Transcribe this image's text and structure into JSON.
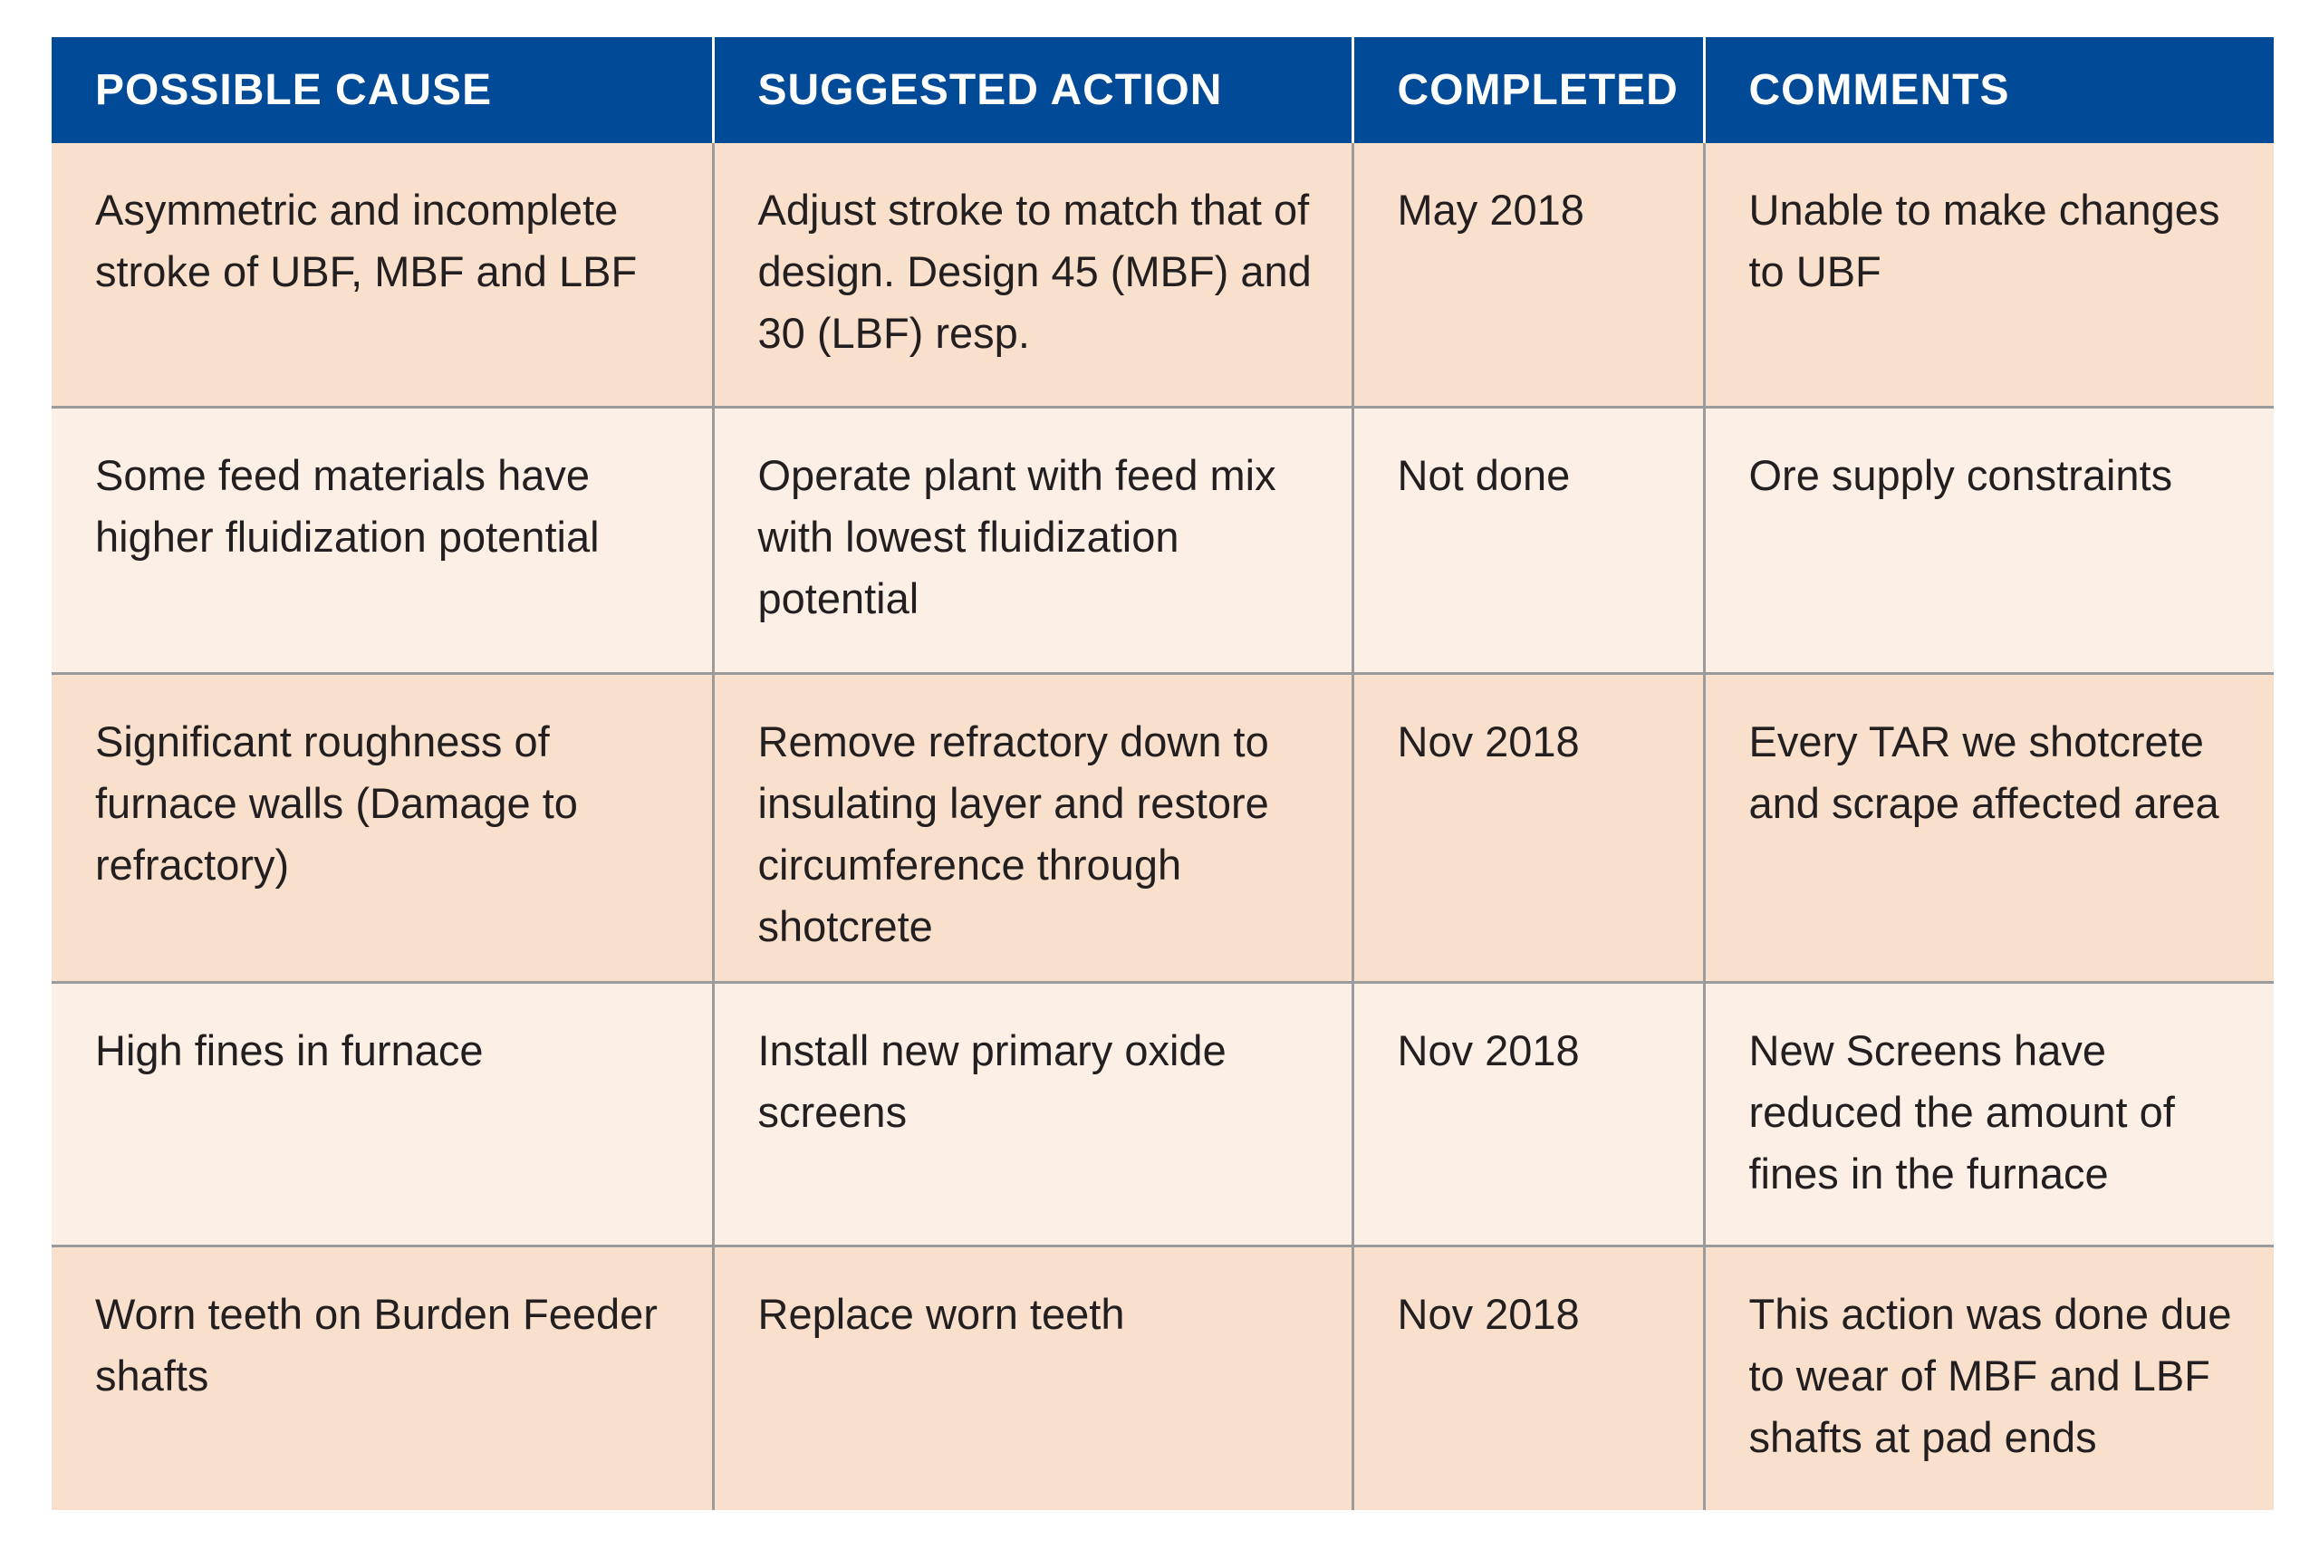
{
  "table": {
    "headers": [
      "POSSIBLE CAUSE",
      "SUGGESTED ACTION",
      "COMPLETED",
      "COMMENTS"
    ],
    "rows": [
      [
        "Asymmetric and incomplete stroke of UBF, MBF and LBF",
        "Adjust stroke to match that of design. Design 45 (MBF) and 30 (LBF) resp.",
        "May 2018",
        "Unable to make changes to UBF"
      ],
      [
        "Some feed materials have higher fluidization potential",
        "Operate plant with feed mix with lowest fluidization potential",
        "Not done",
        "Ore supply constraints"
      ],
      [
        "Significant roughness of furnace walls (Damage to refractory)",
        "Remove refractory down to insulating layer and restore circumference through shotcrete",
        "Nov 2018",
        "Every TAR we shotcrete and scrape affected area"
      ],
      [
        "High fines in furnace",
        "Install new primary oxide screens",
        "Nov 2018",
        "New Screens have reduced the amount of fines in the furnace"
      ],
      [
        "Worn teeth on Burden Feeder shafts",
        "Replace worn teeth",
        "Nov 2018",
        "This action was done due to wear of MBF and LBF shafts at pad ends"
      ]
    ]
  },
  "colors": {
    "header_bg": "#004a98",
    "header_text": "#ffffff",
    "row_odd_bg": "#f9e0cc",
    "row_even_bg": "#fcf0e6",
    "grid": "#9b9b9b",
    "body_text": "#231f20"
  }
}
